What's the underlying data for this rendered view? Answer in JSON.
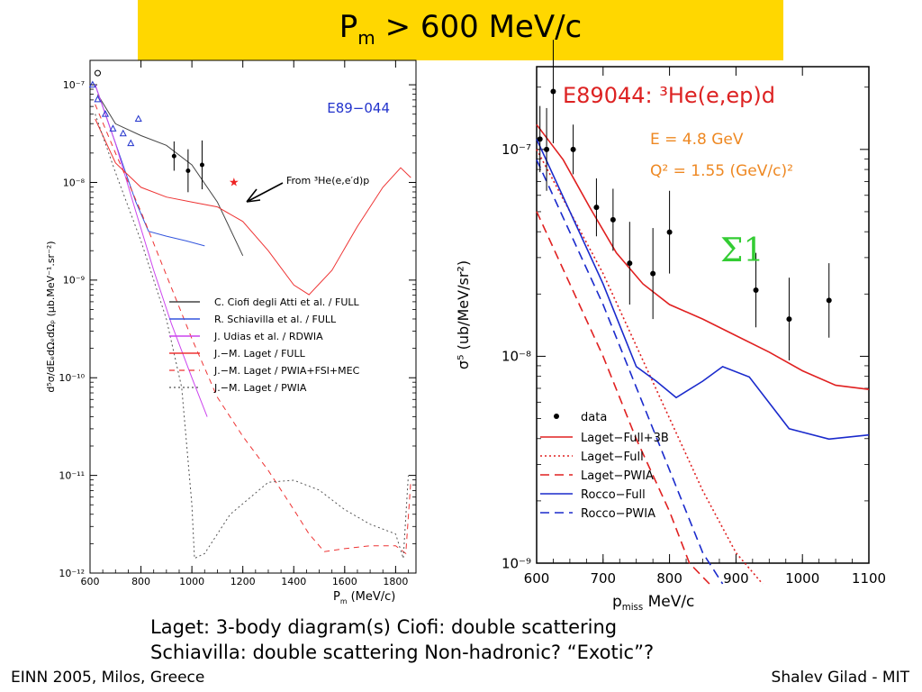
{
  "slide": {
    "title_main": "P",
    "title_sub": "m",
    "title_rest": " > 600 MeV/c",
    "caption_line1": "Laget: 3-body diagram(s)   Ciofi: double scattering",
    "caption_line2": "Schiavilla: double scattering   Non-hadronic? “Exotic”?",
    "footer_left": "EINN 2005, Milos, Greece",
    "footer_right": "Shalev Gilad - MIT",
    "title_bg": "#FFD700"
  },
  "chart_data": [
    {
      "type": "line",
      "tag": "E89−044",
      "xlabel_main": "P",
      "xlabel_sub": "m",
      "xlabel_rest": "   (MeV/c)",
      "ylabel": "d⁵σ/dEₑdΩₑdΩₚ  (μb.MeV⁻¹.sr⁻²)",
      "xlim": [
        600,
        1880
      ],
      "ylim_log10": [
        -12,
        -6.75
      ],
      "y_scale": "log",
      "x_ticks": [
        "600",
        "800",
        "1000",
        "1200",
        "1400",
        "1600",
        "1800"
      ],
      "x_tick_values": [
        600,
        800,
        1000,
        1200,
        1400,
        1600,
        1800
      ],
      "y_ticks": [
        "10⁻¹²",
        "10⁻¹¹",
        "10⁻¹⁰",
        "10⁻⁹",
        "10⁻⁸",
        "10⁻⁷"
      ],
      "y_tick_exps": [
        -12,
        -11,
        -10,
        -9,
        -8,
        -7
      ],
      "annotation": "From ³He(e,e′d)p",
      "legend_position": "center-right",
      "series": [
        {
          "name": "C. Ciofi degli Atti et al. / FULL",
          "color": "#444444",
          "dash": "",
          "points": [
            [
              630,
              -7.1
            ],
            [
              700,
              -7.4
            ],
            [
              800,
              -7.52
            ],
            [
              900,
              -7.62
            ],
            [
              1000,
              -7.82
            ],
            [
              1100,
              -8.2
            ],
            [
              1200,
              -8.75
            ]
          ]
        },
        {
          "name": "R. Schiavilla et al. / FULL",
          "color": "#3355dd",
          "dash": "",
          "points": [
            [
              620,
              -7.0
            ],
            [
              700,
              -7.6
            ],
            [
              780,
              -8.2
            ],
            [
              830,
              -8.5
            ],
            [
              900,
              -8.55
            ],
            [
              980,
              -8.6
            ],
            [
              1050,
              -8.65
            ]
          ]
        },
        {
          "name": "J. Udias et al. / RDWIA",
          "color": "#cc44ee",
          "dash": "",
          "points": [
            [
              620,
              -7.0
            ],
            [
              700,
              -7.6
            ],
            [
              780,
              -8.3
            ],
            [
              850,
              -8.9
            ],
            [
              920,
              -9.45
            ],
            [
              1000,
              -10.0
            ],
            [
              1060,
              -10.4
            ]
          ]
        },
        {
          "name": "J.−M. Laget / FULL",
          "color": "#ee3333",
          "dash": "",
          "points": [
            [
              620,
              -7.35
            ],
            [
              700,
              -7.8
            ],
            [
              800,
              -8.05
            ],
            [
              900,
              -8.15
            ],
            [
              1000,
              -8.2
            ],
            [
              1100,
              -8.25
            ],
            [
              1200,
              -8.4
            ],
            [
              1300,
              -8.7
            ],
            [
              1400,
              -9.05
            ],
            [
              1460,
              -9.15
            ],
            [
              1550,
              -8.9
            ],
            [
              1650,
              -8.45
            ],
            [
              1750,
              -8.05
            ],
            [
              1820,
              -7.85
            ],
            [
              1860,
              -7.95
            ]
          ]
        },
        {
          "name": "J.−M. Laget / PWIA+FSI+MEC",
          "color": "#ee3333",
          "dash": "6,5",
          "points": [
            [
              620,
              -7.2
            ],
            [
              700,
              -7.7
            ],
            [
              800,
              -8.3
            ],
            [
              900,
              -8.95
            ],
            [
              1000,
              -9.6
            ],
            [
              1100,
              -10.2
            ],
            [
              1200,
              -10.6
            ],
            [
              1300,
              -10.95
            ],
            [
              1400,
              -11.35
            ],
            [
              1460,
              -11.6
            ],
            [
              1520,
              -11.78
            ],
            [
              1600,
              -11.75
            ],
            [
              1700,
              -11.72
            ],
            [
              1800,
              -11.72
            ],
            [
              1840,
              -11.8
            ],
            [
              1860,
              -11.05
            ]
          ]
        },
        {
          "name": "J.−M. Laget / PWIA",
          "color": "#555555",
          "dash": "2,3",
          "points": [
            [
              620,
              -7.3
            ],
            [
              700,
              -7.9
            ],
            [
              800,
              -8.6
            ],
            [
              900,
              -9.4
            ],
            [
              960,
              -10.1
            ],
            [
              1000,
              -11.3
            ],
            [
              1010,
              -11.85
            ],
            [
              1050,
              -11.8
            ],
            [
              1150,
              -11.4
            ],
            [
              1300,
              -11.07
            ],
            [
              1400,
              -11.05
            ],
            [
              1500,
              -11.15
            ],
            [
              1600,
              -11.35
            ],
            [
              1700,
              -11.5
            ],
            [
              1800,
              -11.6
            ],
            [
              1830,
              -11.85
            ],
            [
              1850,
              -11.0
            ]
          ]
        }
      ],
      "data_markers": [
        {
          "name": "black points",
          "color": "#000000",
          "shape": "dot",
          "points": [
            [
              930,
              -7.73,
              0.15
            ],
            [
              985,
              -7.88,
              0.22
            ],
            [
              1040,
              -7.82,
              0.25
            ]
          ]
        },
        {
          "name": "blue triangles",
          "color": "#2233cc",
          "shape": "triangle",
          "points": [
            [
              610,
              -7.0
            ],
            [
              630,
              -7.15
            ],
            [
              660,
              -7.3
            ],
            [
              690,
              -7.45
            ],
            [
              730,
              -7.5
            ],
            [
              760,
              -7.6
            ],
            [
              790,
              -7.35
            ]
          ]
        },
        {
          "name": "open circle",
          "color": "#000000",
          "shape": "circle",
          "points": [
            [
              630,
              -6.88
            ]
          ]
        },
        {
          "name": "red star",
          "color": "#ee2222",
          "shape": "star",
          "points": [
            [
              1165,
              -8.0
            ]
          ]
        }
      ]
    },
    {
      "type": "line",
      "tag": "E89044:  ³He(e,ep)d",
      "tag_color": "#dd2222",
      "subtitle1": "E  =  4.8  GeV",
      "subtitle2": "Q²  =  1.55  (GeV/c)²",
      "subtitle_color": "#ee8822",
      "sigma_label": "Σ1",
      "sigma_color": "#33cc33",
      "xlabel_main": "p",
      "xlabel_sub": "miss",
      "xlabel_rest": "   MeV/c",
      "ylabel": "σ⁵  (ub/MeV/sr²)",
      "xlim": [
        600,
        1100
      ],
      "ylim_log10": [
        -9,
        -6.6
      ],
      "y_scale": "log",
      "x_ticks": [
        "600",
        "700",
        "800",
        "900",
        "1000",
        "1100"
      ],
      "x_tick_values": [
        600,
        700,
        800,
        900,
        1000,
        1100
      ],
      "y_ticks": [
        "10⁻⁹",
        "10⁻⁸",
        "10⁻⁷"
      ],
      "y_tick_exps": [
        -9,
        -8,
        -7
      ],
      "legend_position": "bottom-left",
      "series": [
        {
          "name": "Laget−Full+3B",
          "color": "#e02020",
          "dash": "",
          "points": [
            [
              600,
              -6.88
            ],
            [
              640,
              -7.05
            ],
            [
              680,
              -7.28
            ],
            [
              720,
              -7.5
            ],
            [
              760,
              -7.65
            ],
            [
              800,
              -7.75
            ],
            [
              850,
              -7.82
            ],
            [
              900,
              -7.9
            ],
            [
              950,
              -7.98
            ],
            [
              1000,
              -8.07
            ],
            [
              1050,
              -8.14
            ],
            [
              1100,
              -8.16
            ]
          ]
        },
        {
          "name": "Laget−Full",
          "color": "#e02020",
          "dash": "2,3",
          "points": [
            [
              600,
              -7.0
            ],
            [
              650,
              -7.3
            ],
            [
              700,
              -7.6
            ],
            [
              750,
              -7.95
            ],
            [
              800,
              -8.3
            ],
            [
              850,
              -8.65
            ],
            [
              900,
              -8.95
            ],
            [
              940,
              -9.1
            ]
          ]
        },
        {
          "name": "Laget−PWIA",
          "color": "#e02020",
          "dash": "10,6",
          "points": [
            [
              600,
              -7.3
            ],
            [
              650,
              -7.65
            ],
            [
              700,
              -8.0
            ],
            [
              750,
              -8.4
            ],
            [
              800,
              -8.75
            ],
            [
              830,
              -9.0
            ],
            [
              860,
              -9.1
            ]
          ]
        },
        {
          "name": "Rocco−Full",
          "color": "#1a2acc",
          "dash": "",
          "points": [
            [
              600,
              -6.95
            ],
            [
              650,
              -7.3
            ],
            [
              700,
              -7.65
            ],
            [
              750,
              -8.05
            ],
            [
              780,
              -8.12
            ],
            [
              810,
              -8.2
            ],
            [
              850,
              -8.12
            ],
            [
              880,
              -8.05
            ],
            [
              920,
              -8.1
            ],
            [
              980,
              -8.35
            ],
            [
              1040,
              -8.4
            ],
            [
              1100,
              -8.38
            ]
          ]
        },
        {
          "name": "Rocco−PWIA",
          "color": "#1a2acc",
          "dash": "10,6",
          "points": [
            [
              600,
              -7.05
            ],
            [
              650,
              -7.4
            ],
            [
              700,
              -7.75
            ],
            [
              750,
              -8.15
            ],
            [
              800,
              -8.55
            ],
            [
              850,
              -8.95
            ],
            [
              880,
              -9.1
            ]
          ]
        }
      ],
      "data_markers": [
        {
          "name": "data",
          "color": "#000000",
          "shape": "dot",
          "points": [
            [
              605,
              -6.95,
              0.16
            ],
            [
              615,
              -7.0,
              0.2
            ],
            [
              625,
              -6.72,
              0.25
            ],
            [
              655,
              -7.0,
              0.12
            ],
            [
              690,
              -7.28,
              0.14
            ],
            [
              715,
              -7.34,
              0.15
            ],
            [
              740,
              -7.55,
              0.2
            ],
            [
              775,
              -7.6,
              0.22
            ],
            [
              800,
              -7.4,
              0.2
            ],
            [
              930,
              -7.68,
              0.18
            ],
            [
              980,
              -7.82,
              0.2
            ],
            [
              1040,
              -7.73,
              0.18
            ]
          ]
        }
      ]
    }
  ]
}
